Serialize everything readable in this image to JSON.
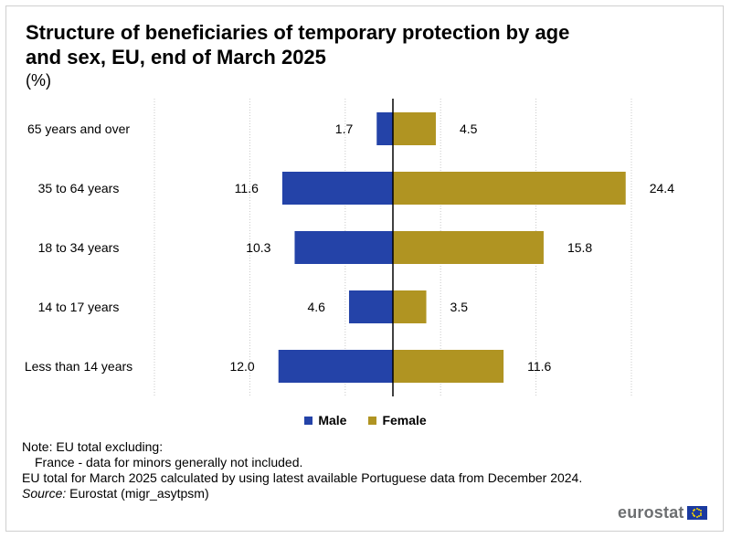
{
  "title": "Structure of beneficiaries of temporary protection by age and sex, EU, end of March 2025",
  "subtitle": "(%)",
  "chart_data": {
    "type": "bar",
    "orientation": "horizontal-pyramid",
    "categories": [
      "65 years and over",
      "35 to 64 years",
      "18 to 34 years",
      "14 to 17 years",
      "Less than 14 years"
    ],
    "series": [
      {
        "name": "Male",
        "values": [
          1.7,
          11.6,
          10.3,
          4.6,
          12.0
        ],
        "labels": [
          "1.7",
          "11.6",
          "10.3",
          "4.6",
          "12.0"
        ],
        "color": "#2443a8",
        "side": "left"
      },
      {
        "name": "Female",
        "values": [
          4.5,
          24.4,
          15.8,
          3.5,
          11.6
        ],
        "labels": [
          "4.5",
          "24.4",
          "15.8",
          "3.5",
          "11.6"
        ],
        "color": "#b09422",
        "side": "right"
      }
    ],
    "xlim": [
      -25,
      25
    ],
    "grid": "vertical-dotted",
    "legend_position": "bottom-center"
  },
  "legend": {
    "male": "Male",
    "female": "Female"
  },
  "notes": {
    "line1": "Note: EU total excluding:",
    "line2": "France - data for minors generally not included.",
    "line3": "EU total for March 2025 calculated by using latest available Portuguese data from December 2024.",
    "source_label": "Source:",
    "source_text": " Eurostat (migr_asytpsm)"
  },
  "logo": {
    "text": "eurostat",
    "icon": "eu-flag-icon"
  }
}
